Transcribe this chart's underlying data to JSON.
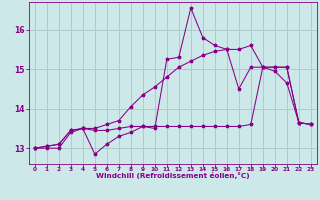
{
  "xlabel": "Windchill (Refroidissement éolien,°C)",
  "bg_color": "#cce8e8",
  "line_color": "#880088",
  "grid_color": "#aacccc",
  "xlim": [
    -0.5,
    23.5
  ],
  "ylim": [
    12.6,
    16.7
  ],
  "yticks": [
    13,
    14,
    15,
    16
  ],
  "xticks": [
    0,
    1,
    2,
    3,
    4,
    5,
    6,
    7,
    8,
    9,
    10,
    11,
    12,
    13,
    14,
    15,
    16,
    17,
    18,
    19,
    20,
    21,
    22,
    23
  ],
  "series1_x": [
    0,
    1,
    2,
    3,
    4,
    5,
    6,
    7,
    8,
    9,
    10,
    11,
    12,
    13,
    14,
    15,
    16,
    17,
    18,
    19,
    20,
    21,
    22,
    23
  ],
  "series1_y": [
    13.0,
    13.0,
    13.0,
    13.4,
    13.5,
    12.85,
    13.1,
    13.3,
    13.4,
    13.55,
    13.5,
    15.25,
    15.3,
    16.55,
    15.8,
    15.6,
    15.5,
    14.5,
    15.05,
    15.05,
    14.95,
    14.65,
    13.65,
    13.6
  ],
  "series2_x": [
    0,
    1,
    2,
    3,
    4,
    5,
    6,
    7,
    8,
    9,
    10,
    11,
    12,
    13,
    14,
    15,
    16,
    17,
    18,
    19,
    20,
    21,
    22,
    23
  ],
  "series2_y": [
    13.0,
    13.05,
    13.1,
    13.45,
    13.5,
    13.45,
    13.45,
    13.5,
    13.55,
    13.55,
    13.55,
    13.55,
    13.55,
    13.55,
    13.55,
    13.55,
    13.55,
    13.55,
    13.6,
    15.05,
    15.05,
    15.05,
    13.65,
    13.6
  ],
  "series3_x": [
    0,
    1,
    2,
    3,
    4,
    5,
    6,
    7,
    8,
    9,
    10,
    11,
    12,
    13,
    14,
    15,
    16,
    17,
    18,
    19,
    20,
    21,
    22,
    23
  ],
  "series3_y": [
    13.0,
    13.05,
    13.1,
    13.45,
    13.5,
    13.5,
    13.6,
    13.7,
    14.05,
    14.35,
    14.55,
    14.8,
    15.05,
    15.2,
    15.35,
    15.45,
    15.5,
    15.5,
    15.6,
    15.05,
    15.05,
    15.05,
    13.65,
    13.6
  ]
}
